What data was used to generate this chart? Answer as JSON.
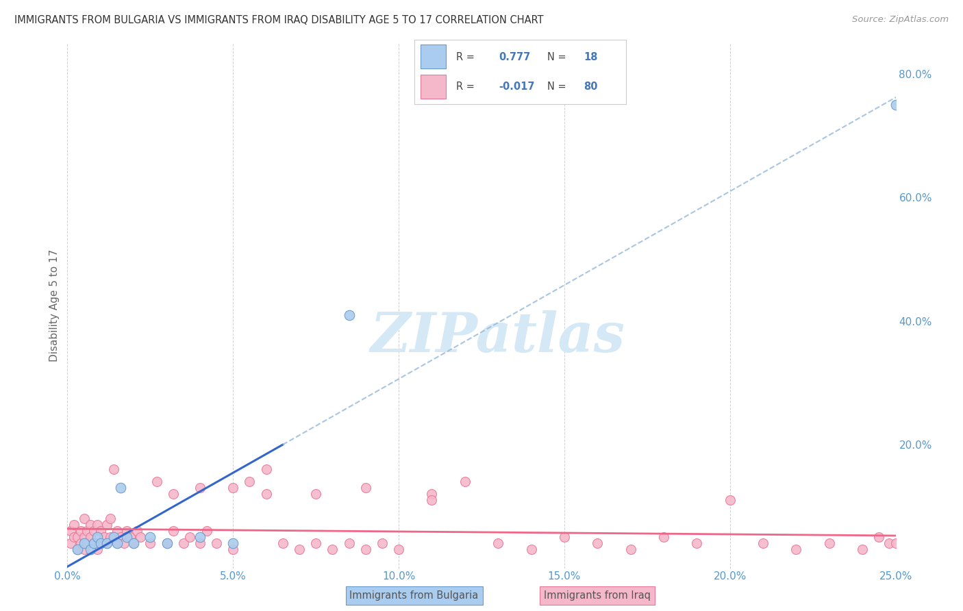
{
  "title": "IMMIGRANTS FROM BULGARIA VS IMMIGRANTS FROM IRAQ DISABILITY AGE 5 TO 17 CORRELATION CHART",
  "source": "Source: ZipAtlas.com",
  "ylabel": "Disability Age 5 to 17",
  "xlim": [
    0.0,
    0.25
  ],
  "ylim": [
    0.0,
    0.85
  ],
  "xtick_labels": [
    "0.0%",
    "5.0%",
    "10.0%",
    "15.0%",
    "20.0%",
    "25.0%"
  ],
  "xtick_vals": [
    0.0,
    0.05,
    0.1,
    0.15,
    0.2,
    0.25
  ],
  "ytick_labels": [
    "20.0%",
    "40.0%",
    "60.0%",
    "80.0%"
  ],
  "ytick_vals": [
    0.2,
    0.4,
    0.6,
    0.8
  ],
  "bulgaria_color": "#aaccee",
  "bulgaria_edge": "#6699cc",
  "iraq_color": "#f5b8cb",
  "iraq_edge": "#e87898",
  "bulgaria_R": 0.777,
  "bulgaria_N": 18,
  "iraq_R": -0.017,
  "iraq_N": 80,
  "legend_color": "#4477bb",
  "watermark_color": "#d5e8f5",
  "background_color": "#ffffff",
  "grid_color": "#cccccc",
  "title_color": "#333333",
  "tick_color": "#5599cc",
  "bulg_line_color": "#3366cc",
  "bulg_dash_color": "#99bbdd",
  "iraq_line_color": "#ee6688",
  "bulg_x": [
    0.003,
    0.005,
    0.007,
    0.008,
    0.009,
    0.01,
    0.012,
    0.014,
    0.015,
    0.016,
    0.018,
    0.02,
    0.025,
    0.03,
    0.04,
    0.05,
    0.085,
    0.25
  ],
  "bulg_y": [
    0.03,
    0.04,
    0.03,
    0.04,
    0.05,
    0.04,
    0.04,
    0.05,
    0.04,
    0.13,
    0.05,
    0.04,
    0.05,
    0.04,
    0.05,
    0.04,
    0.41,
    0.75
  ],
  "iraq_x": [
    0.001,
    0.001,
    0.002,
    0.002,
    0.003,
    0.003,
    0.004,
    0.004,
    0.005,
    0.005,
    0.005,
    0.006,
    0.006,
    0.007,
    0.007,
    0.008,
    0.008,
    0.009,
    0.009,
    0.01,
    0.01,
    0.011,
    0.012,
    0.012,
    0.013,
    0.013,
    0.014,
    0.015,
    0.015,
    0.016,
    0.017,
    0.018,
    0.019,
    0.02,
    0.021,
    0.022,
    0.025,
    0.027,
    0.03,
    0.032,
    0.035,
    0.037,
    0.04,
    0.042,
    0.045,
    0.05,
    0.055,
    0.06,
    0.065,
    0.07,
    0.075,
    0.08,
    0.085,
    0.09,
    0.095,
    0.1,
    0.11,
    0.12,
    0.13,
    0.14,
    0.15,
    0.16,
    0.17,
    0.18,
    0.19,
    0.2,
    0.21,
    0.22,
    0.23,
    0.24,
    0.245,
    0.248,
    0.25,
    0.032,
    0.04,
    0.05,
    0.06,
    0.075,
    0.09,
    0.11
  ],
  "iraq_y": [
    0.04,
    0.06,
    0.05,
    0.07,
    0.03,
    0.05,
    0.04,
    0.06,
    0.03,
    0.05,
    0.08,
    0.04,
    0.06,
    0.05,
    0.07,
    0.04,
    0.06,
    0.03,
    0.07,
    0.04,
    0.06,
    0.05,
    0.04,
    0.07,
    0.05,
    0.08,
    0.16,
    0.04,
    0.06,
    0.05,
    0.04,
    0.06,
    0.05,
    0.04,
    0.06,
    0.05,
    0.04,
    0.14,
    0.04,
    0.06,
    0.04,
    0.05,
    0.04,
    0.06,
    0.04,
    0.03,
    0.14,
    0.16,
    0.04,
    0.03,
    0.04,
    0.03,
    0.04,
    0.03,
    0.04,
    0.03,
    0.12,
    0.14,
    0.04,
    0.03,
    0.05,
    0.04,
    0.03,
    0.05,
    0.04,
    0.11,
    0.04,
    0.03,
    0.04,
    0.03,
    0.05,
    0.04,
    0.04,
    0.12,
    0.13,
    0.13,
    0.12,
    0.12,
    0.13,
    0.11
  ]
}
